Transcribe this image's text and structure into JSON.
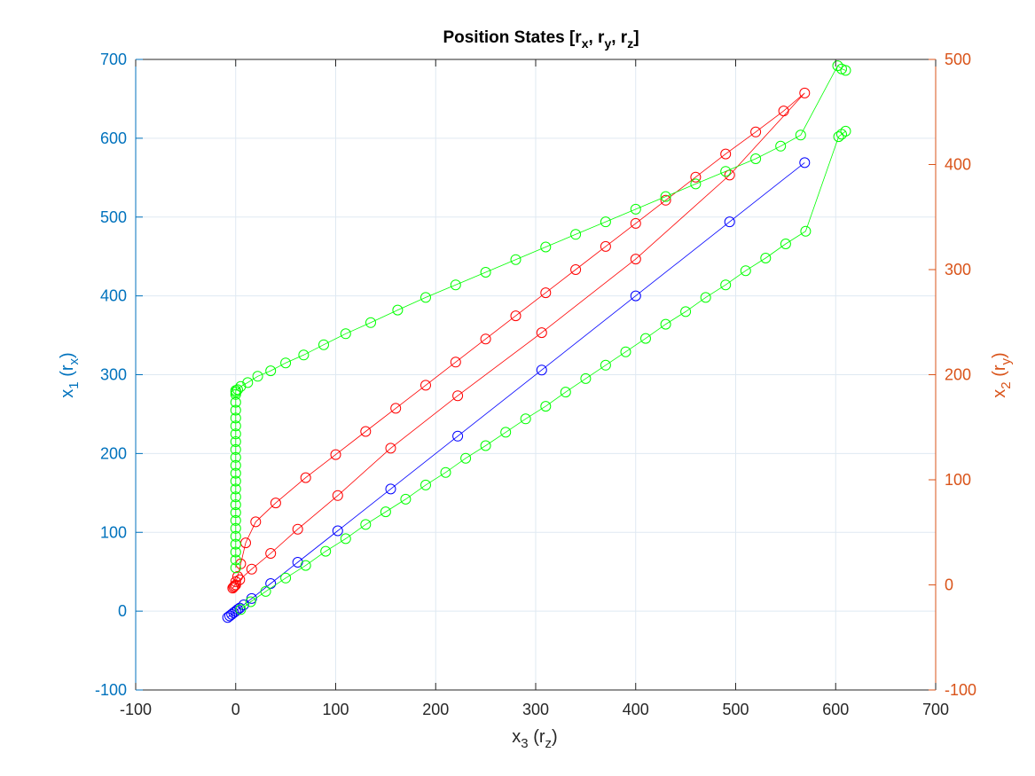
{
  "colors": {
    "left_axis": "#0072BD",
    "right_axis": "#D95319",
    "bottom_axis": "#262626",
    "grid": "#DFE9F2",
    "series_blue": "#0000FF",
    "series_red": "#FF0000",
    "series_green": "#00FF00"
  },
  "chart_data": {
    "type": "line",
    "title": {
      "main": "Position States [r",
      "sub1": "x",
      "sep1": ", r",
      "sub2": "y",
      "sep2": ", r",
      "sub3": "z",
      "end": "]"
    },
    "xlabel": {
      "main": "x",
      "sub": "3",
      "paren": " (r",
      "sub2": "z",
      "end": ")"
    },
    "ylabel_left": {
      "main": "x",
      "sub": "1",
      "paren": " (r",
      "sub2": "x",
      "end": ")"
    },
    "ylabel_right": {
      "main": "x",
      "sub": "2",
      "paren": " (r",
      "sub2": "y",
      "end": ")"
    },
    "xlim": [
      -100,
      700
    ],
    "ylim_left": [
      -100,
      700
    ],
    "ylim_right": [
      -100,
      500
    ],
    "xticks": [
      "-100",
      "0",
      "100",
      "200",
      "300",
      "400",
      "500",
      "600",
      "700"
    ],
    "yticks_left": [
      "-100",
      "0",
      "100",
      "200",
      "300",
      "400",
      "500",
      "600",
      "700"
    ],
    "yticks_right": [
      "-100",
      "0",
      "100",
      "200",
      "300",
      "400",
      "500"
    ],
    "grid": true,
    "series": [
      {
        "axis": "left",
        "color": "#0000FF",
        "x": [
          -8,
          -6,
          -4,
          -2,
          0,
          2,
          4,
          8,
          16,
          35,
          62,
          102,
          155,
          222,
          306,
          400,
          494,
          569
        ],
        "y": [
          -8,
          -6,
          -4,
          -2,
          0,
          2,
          4,
          8,
          16,
          35,
          62,
          102,
          155,
          222,
          306,
          400,
          494,
          569
        ]
      },
      {
        "axis": "right",
        "color": "#FF0000",
        "x": [
          0,
          4,
          16,
          35,
          62,
          102,
          155,
          222,
          306,
          400,
          494,
          569,
          548,
          520,
          490,
          460,
          430,
          400,
          370,
          340,
          310,
          280,
          250,
          220,
          190,
          160,
          130,
          100,
          70,
          40,
          20,
          10,
          5,
          2,
          0,
          -1,
          -2,
          -3
        ],
        "y": [
          0,
          5,
          15,
          30,
          53,
          85,
          130,
          180,
          240,
          310,
          390,
          468,
          451,
          431,
          410,
          388,
          366,
          344,
          322,
          300,
          278,
          256,
          234,
          212,
          190,
          168,
          146,
          124,
          102,
          78,
          60,
          40,
          20,
          8,
          3,
          -1,
          -2,
          -3
        ]
      },
      {
        "axis": "left",
        "color": "#00FF00",
        "x": [
          0,
          0,
          0,
          0,
          0,
          0,
          0,
          0,
          0,
          0,
          0,
          0,
          0,
          0,
          0,
          0,
          0,
          0,
          0,
          0,
          0,
          0,
          0,
          0,
          0,
          2,
          5,
          12,
          22,
          35,
          50,
          68,
          88,
          110,
          135,
          162,
          190,
          220,
          250,
          280,
          310,
          340,
          370,
          400,
          430,
          460,
          490,
          520,
          545,
          565,
          602,
          606,
          610
        ],
        "y": [
          55,
          65,
          75,
          85,
          95,
          105,
          115,
          125,
          135,
          145,
          155,
          165,
          175,
          185,
          195,
          205,
          215,
          225,
          235,
          245,
          255,
          265,
          275,
          278,
          280,
          281,
          285,
          290,
          298,
          305,
          315,
          325,
          338,
          352,
          366,
          382,
          398,
          414,
          430,
          446,
          462,
          478,
          494,
          510,
          526,
          542,
          558,
          574,
          590,
          604,
          692,
          688,
          686
        ]
      },
      {
        "axis": "left",
        "color": "#00FF00",
        "x": [
          5,
          15,
          30,
          50,
          70,
          90,
          110,
          130,
          150,
          170,
          190,
          210,
          230,
          250,
          270,
          290,
          310,
          330,
          350,
          370,
          390,
          410,
          430,
          450,
          470,
          490,
          510,
          530,
          550,
          570,
          603,
          606,
          610
        ],
        "y": [
          2,
          12,
          25,
          42,
          58,
          76,
          92,
          110,
          126,
          142,
          160,
          176,
          194,
          210,
          227,
          244,
          260,
          278,
          295,
          312,
          329,
          346,
          364,
          380,
          398,
          414,
          432,
          448,
          466,
          482,
          602,
          605,
          609
        ]
      }
    ]
  }
}
